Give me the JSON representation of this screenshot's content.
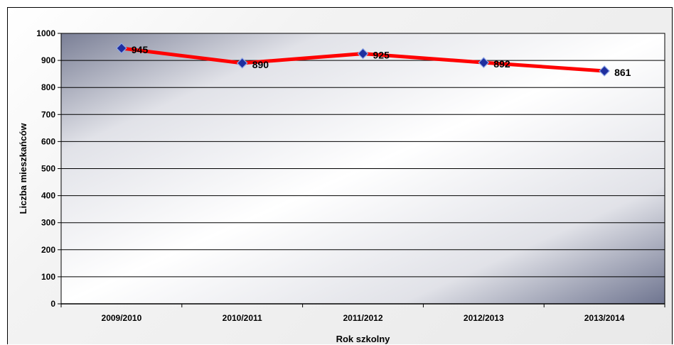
{
  "chart_data": {
    "type": "line",
    "categories": [
      "2009/2010",
      "2010/2011",
      "2011/2012",
      "2012/2013",
      "2013/2014"
    ],
    "series": [
      {
        "values": [
          945,
          890,
          925,
          892,
          861
        ],
        "line_color": "#ff0000",
        "marker_color": "#1f2f9f",
        "marker_shape": "diamond"
      }
    ],
    "data_labels": [
      "945",
      "890",
      "925",
      "892",
      "861"
    ],
    "xlabel": "Rok szkolny",
    "ylabel": "Liczba mieszkańców",
    "ylim": [
      0,
      1000
    ],
    "yticks": [
      0,
      100,
      200,
      300,
      400,
      500,
      600,
      700,
      800,
      900,
      1000
    ],
    "ytick_labels": [
      "0",
      "100",
      "200",
      "300",
      "400",
      "500",
      "600",
      "700",
      "800",
      "900",
      "1000"
    ],
    "grid": true,
    "legend": "none",
    "plot_background": "gradient-dark-corners"
  }
}
